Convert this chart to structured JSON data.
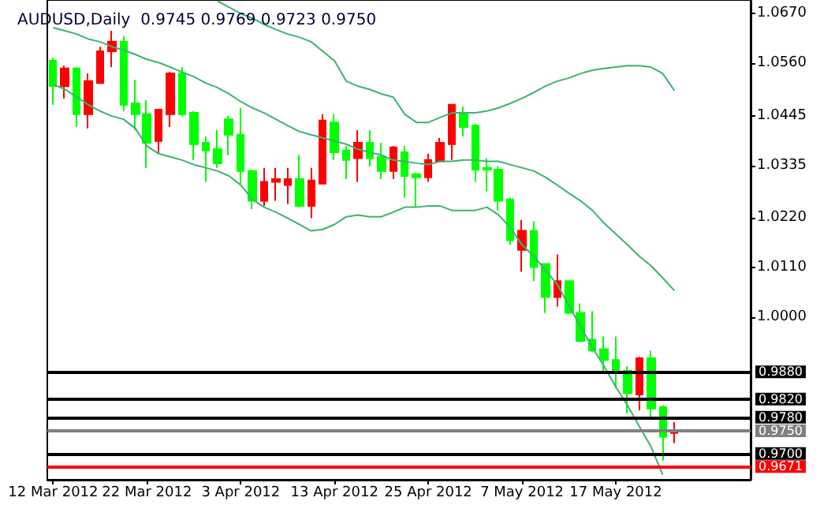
{
  "chart_data": {
    "type": "candlestick",
    "title": "AUDUSD,Daily  0.9745 0.9769 0.9723 0.9750",
    "categories": [
      "12 Mar 2012",
      null,
      null,
      null,
      null,
      null,
      null,
      null,
      "22 Mar 2012",
      null,
      null,
      null,
      null,
      null,
      null,
      null,
      "3 Apr 2012",
      null,
      null,
      null,
      null,
      null,
      null,
      null,
      "13 Apr 2012",
      null,
      null,
      null,
      null,
      null,
      null,
      null,
      "25 Apr 2012",
      null,
      null,
      null,
      null,
      null,
      null,
      null,
      "7 May 2012",
      null,
      null,
      null,
      null,
      null,
      null,
      null,
      "17 May 2012",
      null,
      null,
      null,
      null,
      null,
      null,
      null,
      null,
      null,
      null,
      null
    ],
    "ohlc": [
      [
        1.0566,
        1.0573,
        1.0469,
        1.051
      ],
      [
        1.051,
        1.0555,
        1.0483,
        1.0549
      ],
      [
        1.0549,
        1.0552,
        1.042,
        1.0448
      ],
      [
        1.0448,
        1.0538,
        1.0417,
        1.0521
      ],
      [
        1.0517,
        1.0597,
        1.0517,
        1.0587
      ],
      [
        1.0587,
        1.0632,
        1.0552,
        1.0608
      ],
      [
        1.0608,
        1.0621,
        1.0455,
        1.0469
      ],
      [
        1.0472,
        1.0524,
        1.0413,
        1.0448
      ],
      [
        1.0448,
        1.0479,
        1.033,
        1.0385
      ],
      [
        1.0389,
        1.0458,
        1.0361,
        1.0458
      ],
      [
        1.0448,
        1.0541,
        1.042,
        1.0538
      ],
      [
        1.0538,
        1.0552,
        1.0444,
        1.0448
      ],
      [
        1.0451,
        1.0455,
        1.0347,
        1.0382
      ],
      [
        1.0385,
        1.0399,
        1.0299,
        1.0368
      ],
      [
        1.0371,
        1.0413,
        1.033,
        1.034
      ],
      [
        1.0437,
        1.0444,
        1.0358,
        1.0403
      ],
      [
        1.0403,
        1.0462,
        1.0295,
        1.0323
      ],
      [
        1.0323,
        1.0326,
        1.0239,
        1.0257
      ],
      [
        1.0257,
        1.033,
        1.0246,
        1.0299
      ],
      [
        1.0299,
        1.033,
        1.0257,
        1.0305
      ],
      [
        1.0292,
        1.033,
        1.025,
        1.0305
      ],
      [
        1.0305,
        1.0358,
        1.0243,
        1.0246
      ],
      [
        1.0246,
        1.033,
        1.0219,
        1.0302
      ],
      [
        1.0295,
        1.0448,
        1.0295,
        1.0434
      ],
      [
        1.043,
        1.0448,
        1.0347,
        1.0364
      ],
      [
        1.0368,
        1.0378,
        1.0305,
        1.0347
      ],
      [
        1.0351,
        1.0413,
        1.0299,
        1.0385
      ],
      [
        1.0385,
        1.0413,
        1.0333,
        1.0351
      ],
      [
        1.0354,
        1.0385,
        1.0305,
        1.0323
      ],
      [
        1.0323,
        1.0378,
        1.0305,
        1.0375
      ],
      [
        1.0364,
        1.0378,
        1.0264,
        1.0312
      ],
      [
        1.0316,
        1.0319,
        1.0243,
        1.0309
      ],
      [
        1.0309,
        1.0361,
        1.0299,
        1.0347
      ],
      [
        1.0344,
        1.0396,
        1.0344,
        1.0385
      ],
      [
        1.0382,
        1.0469,
        1.0347,
        1.0469
      ],
      [
        1.0451,
        1.0465,
        1.0399,
        1.042
      ],
      [
        1.0423,
        1.0427,
        1.0299,
        1.0326
      ],
      [
        1.033,
        1.0351,
        1.0278,
        1.0326
      ],
      [
        1.0326,
        1.0333,
        1.0236,
        1.0257
      ],
      [
        1.026,
        1.0264,
        1.016,
        1.017
      ],
      [
        1.0149,
        1.0215,
        1.0101,
        1.0191
      ],
      [
        1.0191,
        1.0212,
        1.008,
        1.0111
      ],
      [
        1.0118,
        1.0118,
        1.001,
        1.0045
      ],
      [
        1.0045,
        1.0139,
        1.0024,
        1.008
      ],
      [
        1.008,
        1.008,
        1.0007,
        1.001
      ],
      [
        1.001,
        1.0031,
        0.9948,
        0.9948
      ],
      [
        0.9951,
        1.0014,
        0.9923,
        0.9927
      ],
      [
        0.993,
        0.9958,
        0.9878,
        0.9906
      ],
      [
        0.9906,
        0.9958,
        0.9844,
        0.9878
      ],
      [
        0.9882,
        0.9892,
        0.9788,
        0.9833
      ],
      [
        0.983,
        0.9913,
        0.9795,
        0.991
      ],
      [
        0.991,
        0.9927,
        0.9778,
        0.9799
      ],
      [
        0.9802,
        0.9806,
        0.9684,
        0.9737
      ],
      [
        0.9745,
        0.9769,
        0.9723,
        0.975
      ],
      null,
      null,
      null,
      null,
      null,
      null
    ],
    "colors": [
      "#00ff00",
      "#ff0000",
      "#00ff00",
      "#ff0000",
      "#ff0000",
      "#ff0000",
      "#00ff00",
      "#00ff00",
      "#00ff00",
      "#ff0000",
      "#ff0000",
      "#00ff00",
      "#00ff00",
      "#00ff00",
      "#00ff00",
      "#00ff00",
      "#00ff00",
      "#00ff00",
      "#ff0000",
      "#ff0000",
      "#ff0000",
      "#00ff00",
      "#ff0000",
      "#ff0000",
      "#00ff00",
      "#00ff00",
      "#ff0000",
      "#00ff00",
      "#00ff00",
      "#ff0000",
      "#00ff00",
      "#00ff00",
      "#ff0000",
      "#ff0000",
      "#ff0000",
      "#00ff00",
      "#00ff00",
      "#00ff00",
      "#00ff00",
      "#00ff00",
      "#ff0000",
      "#00ff00",
      "#00ff00",
      "#ff0000",
      "#00ff00",
      "#00ff00",
      "#00ff00",
      "#00ff00",
      "#00ff00",
      "#00ff00",
      "#ff0000",
      "#00ff00",
      "#00ff00",
      "#ff0000",
      null,
      null,
      null,
      null,
      null,
      null
    ],
    "series": [
      {
        "type": "line",
        "color": "#3cb371",
        "values": [
          null,
          null,
          null,
          null,
          null,
          null,
          null,
          null,
          null,
          null,
          null,
          null,
          null,
          null,
          1.0698,
          1.0684,
          1.067,
          1.066,
          1.0646,
          1.0635,
          1.0625,
          1.0618,
          1.0608,
          1.0587,
          1.0566,
          1.0521,
          1.051,
          1.0503,
          1.0493,
          1.0486,
          1.0448,
          1.043,
          1.043,
          1.0441,
          1.0451,
          1.0451,
          1.0451,
          1.0455,
          1.0462,
          1.0472,
          1.0483,
          1.0496,
          1.051,
          1.0521,
          1.0528,
          1.0538,
          1.0545,
          1.0549,
          1.0552,
          1.0555,
          1.0555,
          1.0552,
          1.0538,
          1.05,
          null,
          null,
          null,
          null,
          null,
          null
        ]
      },
      {
        "type": "line",
        "color": "#3cb371",
        "values": [
          1.0639,
          1.0632,
          1.0625,
          1.0614,
          1.0608,
          1.0597,
          1.059,
          1.058,
          1.0569,
          1.0562,
          1.0552,
          1.0541,
          1.0531,
          1.0517,
          1.0507,
          1.0493,
          1.0476,
          1.0462,
          1.0451,
          1.0437,
          1.0423,
          1.041,
          1.0403,
          1.0396,
          1.0389,
          1.0382,
          1.0371,
          1.0364,
          1.0358,
          1.0347,
          1.0344,
          1.034,
          1.0337,
          1.0344,
          1.0344,
          1.0347,
          1.0347,
          1.0344,
          1.0344,
          1.0337,
          1.033,
          1.0323,
          1.0309,
          1.0292,
          1.0274,
          1.0257,
          1.0236,
          1.0208,
          1.0184,
          1.016,
          1.0135,
          1.0114,
          1.0087,
          1.0059,
          null,
          null,
          null,
          null,
          null,
          null
        ]
      },
      {
        "type": "line",
        "color": "#3cb371",
        "values": [
          1.0514,
          1.0503,
          1.0486,
          1.0469,
          1.0455,
          1.0444,
          1.0437,
          1.0417,
          1.0378,
          1.0361,
          1.0354,
          1.0347,
          1.0337,
          1.033,
          1.0323,
          1.0312,
          1.0292,
          1.026,
          1.0243,
          1.0232,
          1.0219,
          1.0205,
          1.0191,
          1.0194,
          1.0205,
          1.0222,
          1.0226,
          1.0222,
          1.0222,
          1.0232,
          1.0243,
          1.0243,
          1.0246,
          1.0246,
          1.0236,
          1.0236,
          1.0236,
          1.0243,
          1.0226,
          1.0198,
          1.016,
          1.0135,
          1.0104,
          1.0073,
          1.0026,
          0.9979,
          0.9934,
          0.9892,
          0.9847,
          0.9806,
          0.976,
          0.9715,
          0.9653,
          null,
          null,
          null,
          null,
          null,
          null,
          null
        ]
      }
    ],
    "ylim": [
      0.9642,
      1.07
    ],
    "yticks": [
      {
        "value": 1.067,
        "label": "1.0670"
      },
      {
        "value": 1.056,
        "label": "1.0560"
      },
      1.0445,
      1.0335,
      {
        "value": 1.022,
        "label": "1.0220"
      },
      {
        "value": 1.011,
        "label": "1.0110"
      },
      {
        "value": 1.0,
        "label": "1.0000"
      }
    ],
    "ref_lines": [
      {
        "axis": "y",
        "value": 0.988,
        "label": "0.9880",
        "color": "#000000"
      },
      {
        "axis": "y",
        "value": 0.982,
        "label": "0.9820",
        "color": "#000000"
      },
      {
        "axis": "y",
        "value": 0.978,
        "label": "0.9780",
        "color": "#000000"
      },
      {
        "axis": "y",
        "value": 0.975,
        "label": "0.9750",
        "color": "#808080"
      },
      {
        "axis": "y",
        "value": 0.97,
        "label": "0.9700",
        "color": "#000000"
      },
      {
        "axis": "y",
        "value": 0.9671,
        "label": "0.9671",
        "color": "#ff0000"
      }
    ],
    "grid": false,
    "marker": "none",
    "line_style": "solid"
  }
}
